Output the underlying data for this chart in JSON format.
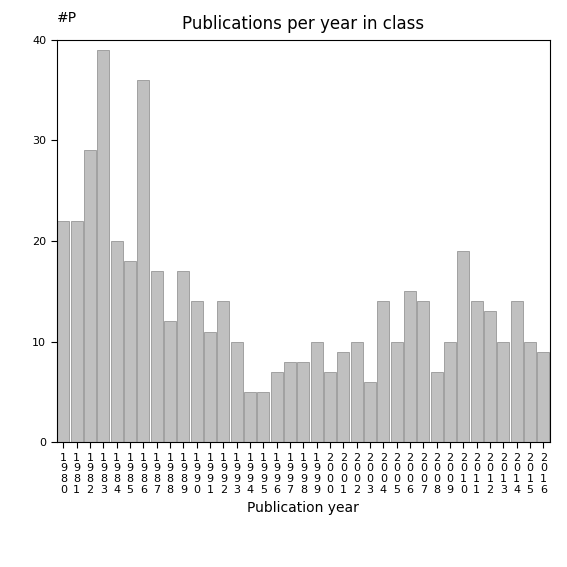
{
  "title": "Publications per year in class",
  "xlabel": "Publication year",
  "ylabel": "#P",
  "ylim": [
    0,
    40
  ],
  "yticks": [
    0,
    10,
    20,
    30,
    40
  ],
  "categories": [
    "1980",
    "1981",
    "1982",
    "1983",
    "1984",
    "1985",
    "1986",
    "1987",
    "1988",
    "1989",
    "1990",
    "1991",
    "1992",
    "1993",
    "1994",
    "1995",
    "1996",
    "1997",
    "1998",
    "1999",
    "2000",
    "2001",
    "2002",
    "2003",
    "2004",
    "2005",
    "2006",
    "2007",
    "2008",
    "2009",
    "2010",
    "2011",
    "2012",
    "2013",
    "2014",
    "2015",
    "2016"
  ],
  "values": [
    22,
    22,
    29,
    39,
    20,
    18,
    36,
    17,
    12,
    17,
    14,
    11,
    14,
    10,
    5,
    5,
    7,
    8,
    8,
    10,
    7,
    9,
    10,
    6,
    14,
    10,
    15,
    14,
    7,
    10,
    19,
    14,
    13,
    10,
    14,
    10,
    9
  ],
  "bar_color": "#c0c0c0",
  "bar_edgecolor": "#888888",
  "background_color": "#ffffff",
  "title_fontsize": 12,
  "label_fontsize": 10,
  "tick_fontsize": 8,
  "ylabel_fontsize": 10
}
